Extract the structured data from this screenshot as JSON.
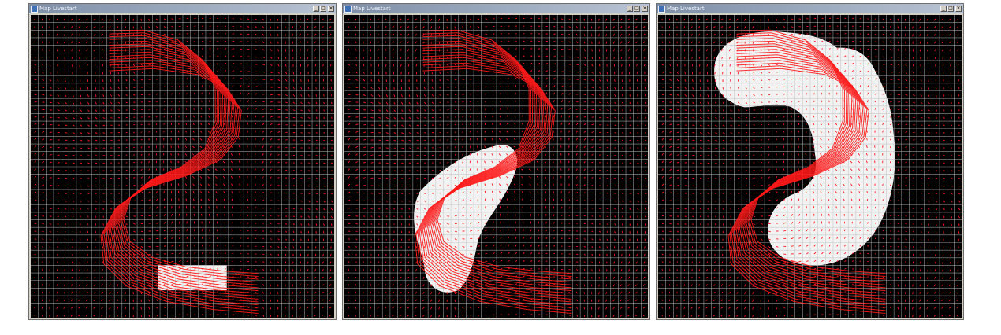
{
  "windows": [
    {
      "title": "Map Livestart",
      "blobs": 1
    },
    {
      "title": "Map Livestart",
      "blobs": 2
    },
    {
      "title": "Map Livestart",
      "blobs": 3
    }
  ],
  "colors": {
    "vector": "#ff1a1a",
    "grid": "#bfbfbf",
    "field": "#000000",
    "mask": "#ffffff"
  },
  "icons": {
    "minimize": "minimize-icon",
    "maximize": "maximize-icon",
    "close": "close-icon"
  }
}
